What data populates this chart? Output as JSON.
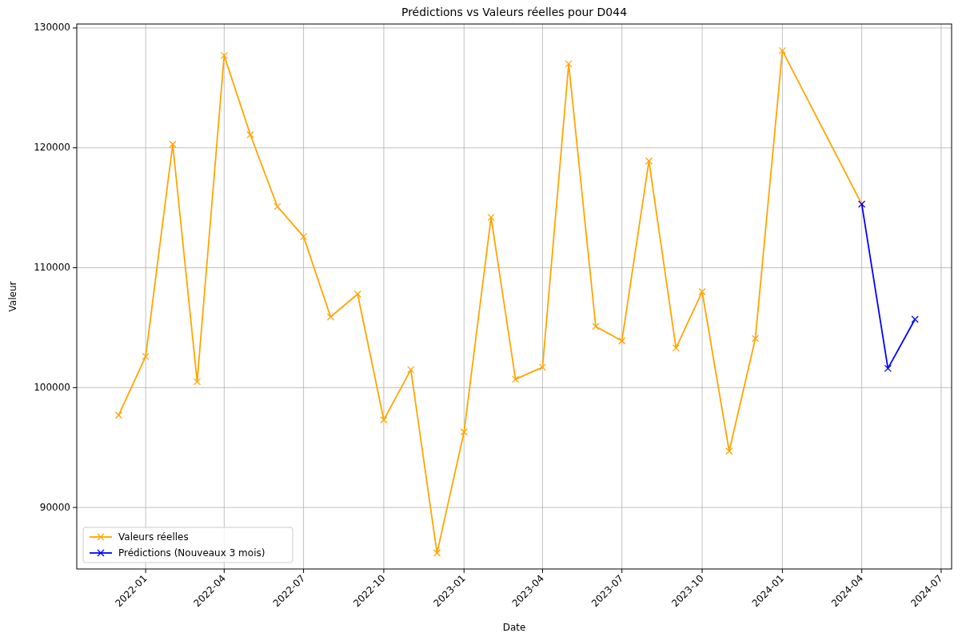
{
  "chart_data": {
    "type": "line",
    "title": "Prédictions vs Valeurs réelles pour D044",
    "xlabel": "Date",
    "ylabel": "Valeur",
    "xlim": [
      "2021-10-14",
      "2024-07-13"
    ],
    "ylim": [
      84870,
      130330
    ],
    "xticks": [
      {
        "value": "2022-01",
        "label": "2022-01"
      },
      {
        "value": "2022-04",
        "label": "2022-04"
      },
      {
        "value": "2022-07",
        "label": "2022-07"
      },
      {
        "value": "2022-10",
        "label": "2022-10"
      },
      {
        "value": "2023-01",
        "label": "2023-01"
      },
      {
        "value": "2023-04",
        "label": "2023-04"
      },
      {
        "value": "2023-07",
        "label": "2023-07"
      },
      {
        "value": "2023-10",
        "label": "2023-10"
      },
      {
        "value": "2024-01",
        "label": "2024-01"
      },
      {
        "value": "2024-04",
        "label": "2024-04"
      },
      {
        "value": "2024-07",
        "label": "2024-07"
      }
    ],
    "yticks": [
      90000,
      100000,
      110000,
      120000,
      130000
    ],
    "grid": true,
    "legend": "bottom left",
    "marker": "cross",
    "line_style": "solid",
    "series": [
      {
        "name": "Valeurs réelles",
        "color": "#ffa500",
        "x": [
          "2021-12",
          "2022-01",
          "2022-02",
          "2022-03",
          "2022-04",
          "2022-05",
          "2022-06",
          "2022-07",
          "2022-08",
          "2022-09",
          "2022-10",
          "2022-11",
          "2022-12",
          "2023-01",
          "2023-02",
          "2023-03",
          "2023-04",
          "2023-05",
          "2023-06",
          "2023-07",
          "2023-08",
          "2023-09",
          "2023-10",
          "2023-11",
          "2023-12",
          "2024-01",
          "2024-04"
        ],
        "values": [
          97700,
          102600,
          120300,
          100500,
          127700,
          121100,
          115100,
          112600,
          105900,
          107800,
          97300,
          101500,
          86200,
          96300,
          114200,
          100700,
          101700,
          127000,
          105100,
          103900,
          118900,
          103300,
          108000,
          94700,
          104100,
          128100,
          115300
        ]
      },
      {
        "name": "Prédictions (Nouveaux 3 mois)",
        "color": "#0000ff",
        "x": [
          "2024-04",
          "2024-05",
          "2024-06"
        ],
        "values": [
          115300,
          101600,
          105700
        ]
      }
    ]
  }
}
